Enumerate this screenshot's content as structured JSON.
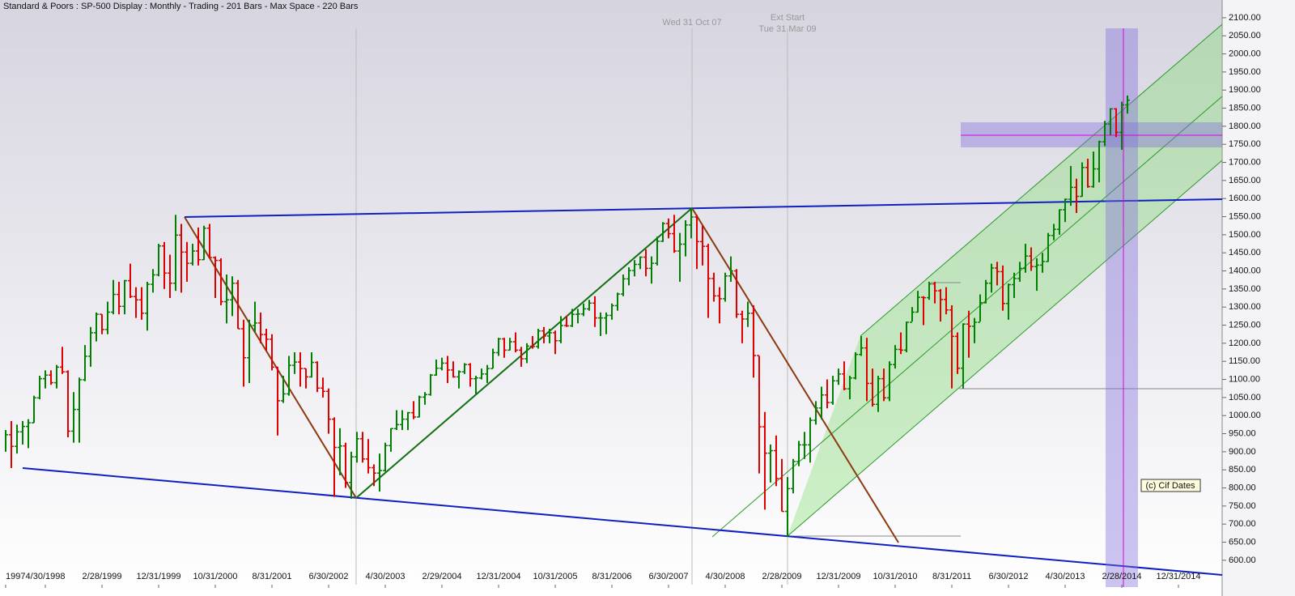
{
  "chart_data": {
    "type": "ohlc",
    "title": "Standard & Poors : SP-500 Display :  Monthly  - Trading - 201 Bars  - Max Space - 220 Bars",
    "annotations": [
      "Wed 31 Oct 07",
      "Ext Start",
      "Tue 31 Mar 09"
    ],
    "watermark": "(c) Cif Dates",
    "up_color": "#008000",
    "down_color": "#e00000",
    "categories": [
      "1997",
      null,
      null,
      null,
      null,
      null,
      null,
      "4/30/1998",
      null,
      null,
      null,
      null,
      null,
      null,
      null,
      null,
      null,
      "2/28/1999",
      null,
      null,
      null,
      null,
      null,
      null,
      null,
      null,
      null,
      "12/31/1999",
      null,
      null,
      null,
      null,
      null,
      null,
      null,
      null,
      null,
      "10/31/2000",
      null,
      null,
      null,
      null,
      null,
      null,
      null,
      null,
      null,
      "8/31/2001",
      null,
      null,
      null,
      null,
      null,
      null,
      null,
      null,
      null,
      "6/30/2002",
      null,
      null,
      null,
      null,
      null,
      null,
      null,
      null,
      null,
      "4/30/2003",
      null,
      null,
      null,
      null,
      null,
      null,
      null,
      null,
      null,
      "2/29/2004",
      null,
      null,
      null,
      null,
      null,
      null,
      null,
      null,
      null,
      "12/31/2004",
      null,
      null,
      null,
      null,
      null,
      null,
      null,
      null,
      null,
      "10/31/2005",
      null,
      null,
      null,
      null,
      null,
      null,
      null,
      null,
      null,
      "8/31/2006",
      null,
      null,
      null,
      null,
      null,
      null,
      null,
      null,
      null,
      "6/30/2007",
      null,
      null,
      null,
      null,
      null,
      null,
      null,
      null,
      null,
      "4/30/2008",
      null,
      null,
      null,
      null,
      null,
      null,
      null,
      null,
      null,
      "2/28/2009",
      null,
      null,
      null,
      null,
      null,
      null,
      null,
      null,
      null,
      "12/31/2009",
      null,
      null,
      null,
      null,
      null,
      null,
      null,
      null,
      null,
      "10/31/2010",
      null,
      null,
      null,
      null,
      null,
      null,
      null,
      null,
      null,
      "8/31/2011",
      null,
      null,
      null,
      null,
      null,
      null,
      null,
      null,
      null,
      "6/30/2012",
      null,
      null,
      null,
      null,
      null,
      null,
      null,
      null,
      null,
      "4/30/2013",
      null,
      null,
      null,
      null,
      null,
      null,
      null,
      null,
      null,
      "2/28/2014",
      null,
      null,
      null,
      null,
      null,
      null,
      null,
      null,
      null,
      "12/31/2014",
      null,
      null,
      null,
      null
    ],
    "close": [
      947,
      915,
      955,
      970,
      980,
      1049,
      1102,
      1112,
      1091,
      1134,
      1121,
      957,
      1017,
      1099,
      1164,
      1229,
      1280,
      1238,
      1286,
      1335,
      1302,
      1373,
      1329,
      1320,
      1283,
      1363,
      1389,
      1469,
      1394,
      1366,
      1499,
      1452,
      1421,
      1455,
      1431,
      1518,
      1437,
      1429,
      1315,
      1320,
      1366,
      1240,
      1160,
      1249,
      1256,
      1224,
      1211,
      1134,
      1041,
      1060,
      1139,
      1148,
      1130,
      1107,
      1147,
      1076,
      1067,
      990,
      912,
      916,
      815,
      886,
      936,
      880,
      856,
      841,
      848,
      917,
      964,
      975,
      990,
      1008,
      996,
      1051,
      1058,
      1112,
      1131,
      1145,
      1126,
      1107,
      1121,
      1141,
      1102,
      1104,
      1115,
      1130,
      1174,
      1212,
      1181,
      1204,
      1181,
      1157,
      1192,
      1191,
      1234,
      1220,
      1229,
      1207,
      1249,
      1248,
      1280,
      1281,
      1295,
      1311,
      1270,
      1270,
      1277,
      1304,
      1336,
      1378,
      1401,
      1418,
      1438,
      1407,
      1421,
      1482,
      1531,
      1503,
      1455,
      1474,
      1527,
      1549,
      1481,
      1468,
      1379,
      1331,
      1323,
      1386,
      1400,
      1280,
      1267,
      1283,
      1166,
      969,
      896,
      903,
      826,
      735,
      798,
      873,
      919,
      919,
      987,
      1021,
      1057,
      1036,
      1096,
      1115,
      1074,
      1104,
      1169,
      1187,
      1089,
      1031,
      1102,
      1049,
      1141,
      1183,
      1181,
      1258,
      1286,
      1327,
      1326,
      1364,
      1345,
      1321,
      1292,
      1219,
      1131,
      1253,
      1247,
      1258,
      1312,
      1366,
      1408,
      1398,
      1310,
      1362,
      1379,
      1407,
      1441,
      1412,
      1416,
      1426,
      1498,
      1515,
      1569,
      1598,
      1631,
      1606,
      1686,
      1633,
      1682,
      1757,
      1806,
      1848,
      1783,
      1859,
      1872,
      null,
      null,
      null,
      null,
      null,
      null,
      null,
      null,
      null,
      null,
      null,
      null,
      null
    ],
    "high": [
      960,
      985,
      975,
      985,
      990,
      1055,
      1110,
      1125,
      1125,
      1140,
      1190,
      1125,
      1065,
      1105,
      1195,
      1245,
      1285,
      1280,
      1315,
      1375,
      1370,
      1375,
      1420,
      1355,
      1355,
      1370,
      1405,
      1475,
      1480,
      1445,
      1555,
      1530,
      1480,
      1475,
      1520,
      1525,
      1530,
      1440,
      1435,
      1390,
      1385,
      1375,
      1265,
      1265,
      1315,
      1285,
      1240,
      1225,
      1135,
      1110,
      1165,
      1175,
      1175,
      1130,
      1175,
      1150,
      1105,
      1075,
      995,
      965,
      925,
      900,
      955,
      955,
      935,
      865,
      895,
      925,
      965,
      1015,
      1015,
      1010,
      1040,
      1055,
      1065,
      1115,
      1155,
      1160,
      1165,
      1150,
      1125,
      1145,
      1145,
      1110,
      1130,
      1140,
      1185,
      1215,
      1215,
      1215,
      1230,
      1190,
      1200,
      1220,
      1240,
      1245,
      1240,
      1235,
      1275,
      1275,
      1295,
      1295,
      1310,
      1320,
      1330,
      1285,
      1285,
      1310,
      1340,
      1390,
      1410,
      1430,
      1440,
      1460,
      1440,
      1495,
      1535,
      1545,
      1555,
      1505,
      1540,
      1575,
      1555,
      1525,
      1475,
      1395,
      1355,
      1395,
      1440,
      1405,
      1290,
      1315,
      1305,
      1165,
      1010,
      920,
      945,
      880,
      830,
      880,
      930,
      955,
      995,
      1040,
      1080,
      1100,
      1110,
      1130,
      1150,
      1110,
      1175,
      1220,
      1215,
      1130,
      1110,
      1130,
      1150,
      1195,
      1230,
      1260,
      1300,
      1345,
      1330,
      1370,
      1370,
      1350,
      1355,
      1305,
      1230,
      1255,
      1290,
      1270,
      1335,
      1375,
      1420,
      1425,
      1415,
      1365,
      1395,
      1425,
      1475,
      1465,
      1435,
      1450,
      1505,
      1530,
      1570,
      1600,
      1690,
      1655,
      1700,
      1710,
      1730,
      1760,
      1815,
      1850,
      1850,
      1868,
      1885,
      null,
      null,
      null,
      null,
      null,
      null,
      null,
      null,
      null,
      null,
      null,
      null,
      null
    ],
    "low": [
      900,
      855,
      895,
      920,
      910,
      980,
      1045,
      1075,
      1085,
      1075,
      1115,
      940,
      925,
      925,
      1095,
      1135,
      1205,
      1225,
      1225,
      1280,
      1280,
      1280,
      1325,
      1270,
      1265,
      1235,
      1340,
      1385,
      1350,
      1325,
      1345,
      1340,
      1370,
      1415,
      1415,
      1430,
      1435,
      1325,
      1305,
      1255,
      1275,
      1240,
      1080,
      1090,
      1230,
      1200,
      1180,
      1125,
      945,
      1035,
      1055,
      1115,
      1080,
      1075,
      1105,
      1065,
      1050,
      950,
      775,
      835,
      800,
      770,
      870,
      870,
      840,
      805,
      790,
      845,
      900,
      960,
      960,
      960,
      990,
      995,
      1030,
      1055,
      1110,
      1125,
      1090,
      1105,
      1075,
      1115,
      1080,
      1060,
      1100,
      1090,
      1130,
      1165,
      1160,
      1180,
      1175,
      1135,
      1145,
      1185,
      1185,
      1200,
      1200,
      1170,
      1200,
      1245,
      1245,
      1255,
      1275,
      1290,
      1245,
      1220,
      1225,
      1265,
      1290,
      1330,
      1360,
      1385,
      1405,
      1385,
      1365,
      1415,
      1480,
      1490,
      1450,
      1370,
      1440,
      1490,
      1405,
      1415,
      1270,
      1315,
      1255,
      1315,
      1370,
      1270,
      1200,
      1245,
      1105,
      840,
      740,
      815,
      805,
      735,
      665,
      785,
      860,
      880,
      870,
      975,
      990,
      1020,
      1030,
      1085,
      1070,
      1045,
      1100,
      1165,
      1040,
      1025,
      1010,
      1040,
      1040,
      1130,
      1170,
      1175,
      1260,
      1285,
      1250,
      1320,
      1310,
      1260,
      1280,
      1075,
      1115,
      1075,
      1160,
      1200,
      1260,
      1310,
      1340,
      1360,
      1290,
      1265,
      1325,
      1370,
      1395,
      1400,
      1345,
      1395,
      1425,
      1485,
      1500,
      1535,
      1580,
      1560,
      1605,
      1630,
      1630,
      1645,
      1745,
      1775,
      1770,
      1735,
      1835,
      null,
      null,
      null,
      null,
      null,
      null,
      null,
      null,
      null,
      null,
      null,
      null,
      null
    ],
    "ylim": [
      537,
      2149
    ],
    "yticks": [
      {
        "value": 600,
        "label": "600.00"
      },
      {
        "value": 650,
        "label": "650.00"
      },
      {
        "value": 700,
        "label": "700.00"
      },
      {
        "value": 750,
        "label": "750.00"
      },
      {
        "value": 800,
        "label": "800.00"
      },
      {
        "value": 850,
        "label": "850.00"
      },
      {
        "value": 900,
        "label": "900.00"
      },
      {
        "value": 950,
        "label": "950.00"
      },
      {
        "value": 1000,
        "label": "1000.00"
      },
      {
        "value": 1050,
        "label": "1050.00"
      },
      {
        "value": 1100,
        "label": "1100.00"
      },
      {
        "value": 1150,
        "label": "1150.00"
      },
      {
        "value": 1200,
        "label": "1200.00"
      },
      {
        "value": 1250,
        "label": "1250.00"
      },
      {
        "value": 1300,
        "label": "1300.00"
      },
      {
        "value": 1350,
        "label": "1350.00"
      },
      {
        "value": 1400,
        "label": "1400.00"
      },
      {
        "value": 1450,
        "label": "1450.00"
      },
      {
        "value": 1500,
        "label": "1500.00"
      },
      {
        "value": 1550,
        "label": "1550.00"
      },
      {
        "value": 1600,
        "label": "1600.00"
      },
      {
        "value": 1650,
        "label": "1650.00"
      },
      {
        "value": 1700,
        "label": "1700.00"
      },
      {
        "value": 1750,
        "label": "1750.00"
      },
      {
        "value": 1800,
        "label": "1800.00"
      },
      {
        "value": 1850,
        "label": "1850.00"
      },
      {
        "value": 1900,
        "label": "1900.00"
      },
      {
        "value": 1950,
        "label": "1950.00"
      },
      {
        "value": 2000,
        "label": "2000.00"
      },
      {
        "value": 2050,
        "label": "2050.00"
      },
      {
        "value": 2100,
        "label": "2100.00"
      }
    ]
  }
}
